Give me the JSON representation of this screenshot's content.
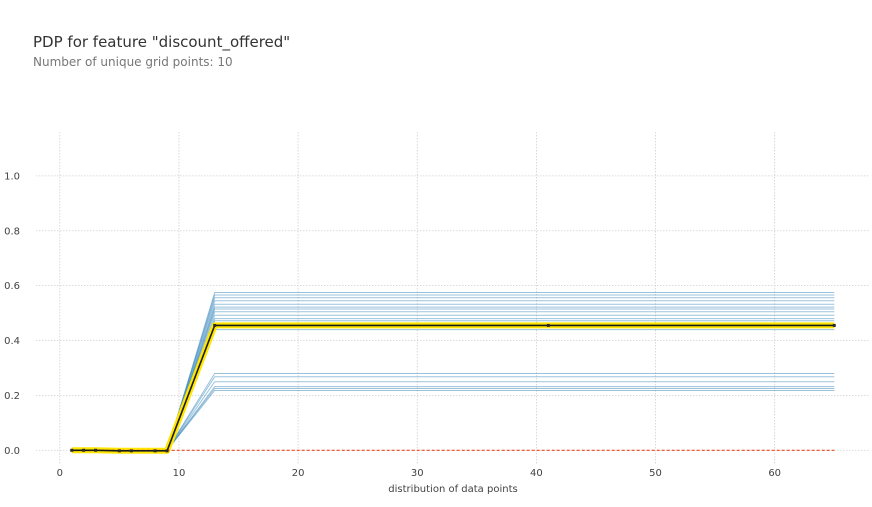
{
  "chart_data": {
    "type": "line",
    "title": "PDP for feature \"discount_offered\"",
    "subtitle": "Number of unique grid points: 10",
    "xlabel": "distribution of data points",
    "ylabel": "",
    "xlim": [
      -2,
      68
    ],
    "ylim": [
      -0.05,
      1.16
    ],
    "xticks": [
      0,
      10,
      20,
      30,
      40,
      50,
      60
    ],
    "yticks": [
      0.0,
      0.2,
      0.4,
      0.6,
      0.8,
      1.0
    ],
    "x": [
      1,
      2,
      3,
      5,
      6,
      8,
      9,
      13,
      41,
      65
    ],
    "grid": true,
    "series": [
      {
        "role": "average",
        "values": [
          0.0,
          0.0,
          0.0,
          -0.002,
          -0.002,
          -0.002,
          -0.002,
          0.455,
          0.455,
          0.455
        ]
      },
      {
        "role": "zero-reference",
        "values": [
          0,
          0,
          0,
          0,
          0,
          0,
          0,
          0,
          0,
          0
        ]
      }
    ],
    "ice_lines": [
      {
        "values": [
          0,
          0,
          0,
          0,
          0,
          0,
          0,
          0.575,
          0.575,
          0.575
        ]
      },
      {
        "values": [
          0,
          0,
          0,
          0,
          0,
          0,
          0,
          0.566,
          0.566,
          0.566
        ]
      },
      {
        "values": [
          0,
          0,
          0,
          0,
          0,
          0,
          0,
          0.556,
          0.556,
          0.556
        ]
      },
      {
        "values": [
          0,
          0,
          0,
          0,
          0,
          0,
          0,
          0.545,
          0.545,
          0.545
        ]
      },
      {
        "values": [
          0,
          0,
          0,
          0,
          0,
          0,
          0,
          0.532,
          0.532,
          0.532
        ]
      },
      {
        "values": [
          0,
          0,
          0,
          0,
          0,
          0,
          0,
          0.522,
          0.522,
          0.522
        ]
      },
      {
        "values": [
          0,
          0,
          0,
          0,
          0,
          0,
          0,
          0.515,
          0.515,
          0.515
        ]
      },
      {
        "values": [
          0,
          0,
          0,
          0,
          0,
          0,
          0,
          0.505,
          0.505,
          0.505
        ]
      },
      {
        "values": [
          0,
          0,
          0,
          0,
          0,
          0,
          0,
          0.492,
          0.492,
          0.492
        ]
      },
      {
        "values": [
          0,
          0,
          0,
          0,
          0,
          0,
          0,
          0.48,
          0.48,
          0.48
        ]
      },
      {
        "values": [
          0,
          0,
          0,
          0,
          0,
          0,
          0,
          0.472,
          0.472,
          0.472
        ]
      },
      {
        "values": [
          0,
          0,
          0,
          0,
          0,
          0,
          0,
          0.462,
          0.462,
          0.462
        ]
      },
      {
        "values": [
          0,
          0,
          0,
          0,
          0,
          0,
          0,
          0.45,
          0.45,
          0.45
        ]
      },
      {
        "values": [
          0,
          0,
          0,
          0,
          0,
          0,
          0,
          0.44,
          0.44,
          0.44
        ]
      },
      {
        "values": [
          0,
          0,
          0,
          0,
          0,
          0,
          0,
          0.28,
          0.28,
          0.28
        ]
      },
      {
        "values": [
          0,
          0,
          0,
          0,
          0,
          0,
          0,
          0.268,
          0.268,
          0.268
        ]
      },
      {
        "values": [
          0,
          0,
          0,
          0,
          0,
          0,
          0,
          0.25,
          0.25,
          0.25
        ]
      },
      {
        "values": [
          0,
          0,
          0,
          0,
          0,
          0,
          0,
          0.232,
          0.232,
          0.232
        ]
      },
      {
        "values": [
          0,
          0,
          0,
          0,
          0,
          0,
          0,
          0.225,
          0.225,
          0.225
        ]
      },
      {
        "values": [
          0,
          0,
          0,
          0,
          0,
          0,
          0,
          0.218,
          0.218,
          0.218
        ]
      }
    ],
    "colors": {
      "ice": "#1f77b4",
      "average_band": "#ffe600",
      "average_line": "#1a1a1a",
      "zero_line": "#ec4820",
      "grid": "#cfcfcf",
      "marker": "#2b2b2b"
    }
  }
}
